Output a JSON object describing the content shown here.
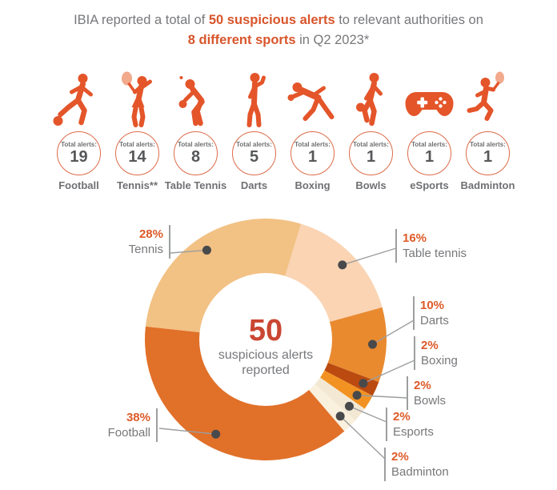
{
  "title": {
    "line1_pre": "IBIA reported a total of ",
    "line1_em": "50 suspicious alerts",
    "line1_post": " to relevant authorities on",
    "line2_em": "8 different sports",
    "line2_post": " in Q2 2023*"
  },
  "total_alerts_label": "Total alerts:",
  "sports": [
    {
      "name": "Football",
      "alerts": "19",
      "icon": "football-player-icon"
    },
    {
      "name": "Tennis**",
      "alerts": "14",
      "icon": "tennis-player-icon"
    },
    {
      "name": "Table Tennis",
      "alerts": "8",
      "icon": "table-tennis-player-icon"
    },
    {
      "name": "Darts",
      "alerts": "5",
      "icon": "darts-player-icon"
    },
    {
      "name": "Boxing",
      "alerts": "1",
      "icon": "boxing-player-icon"
    },
    {
      "name": "Bowls",
      "alerts": "1",
      "icon": "bowls-player-icon"
    },
    {
      "name": "eSports",
      "alerts": "1",
      "icon": "game-controller-icon"
    },
    {
      "name": "Badminton",
      "alerts": "1",
      "icon": "badminton-player-icon"
    }
  ],
  "colors": {
    "accent_orange": "#d8552b",
    "text_gray": "#77787b",
    "icon_orange": "#e4552a",
    "center_value_color": "#ca4632",
    "leader_line": "#9d9e9f",
    "dot": "#48494b"
  },
  "chart_data": {
    "type": "pie",
    "donut": true,
    "start_angle_deg": 17,
    "legend_position": "callouts",
    "center_value": "50",
    "center_label_line1": "suspicious alerts",
    "center_label_line2": "reported",
    "slices": [
      {
        "label": "Table tennis",
        "value": 16,
        "pct_label": "16%",
        "color": "#fad4b3"
      },
      {
        "label": "Darts",
        "value": 10,
        "pct_label": "10%",
        "color": "#e98a2f"
      },
      {
        "label": "Boxing",
        "value": 2,
        "pct_label": "2%",
        "color": "#ba4a10"
      },
      {
        "label": "Bowls",
        "value": 2,
        "pct_label": "2%",
        "color": "#f29222"
      },
      {
        "label": "Esports",
        "value": 2,
        "pct_label": "2%",
        "color": "#f2e8d4"
      },
      {
        "label": "Badminton",
        "value": 2,
        "pct_label": "2%",
        "color": "#f9f0de"
      },
      {
        "label": "Football",
        "value": 38,
        "pct_label": "38%",
        "color": "#e17029"
      },
      {
        "label": "Tennis",
        "value": 28,
        "pct_label": "28%",
        "color": "#f2c184"
      }
    ]
  }
}
